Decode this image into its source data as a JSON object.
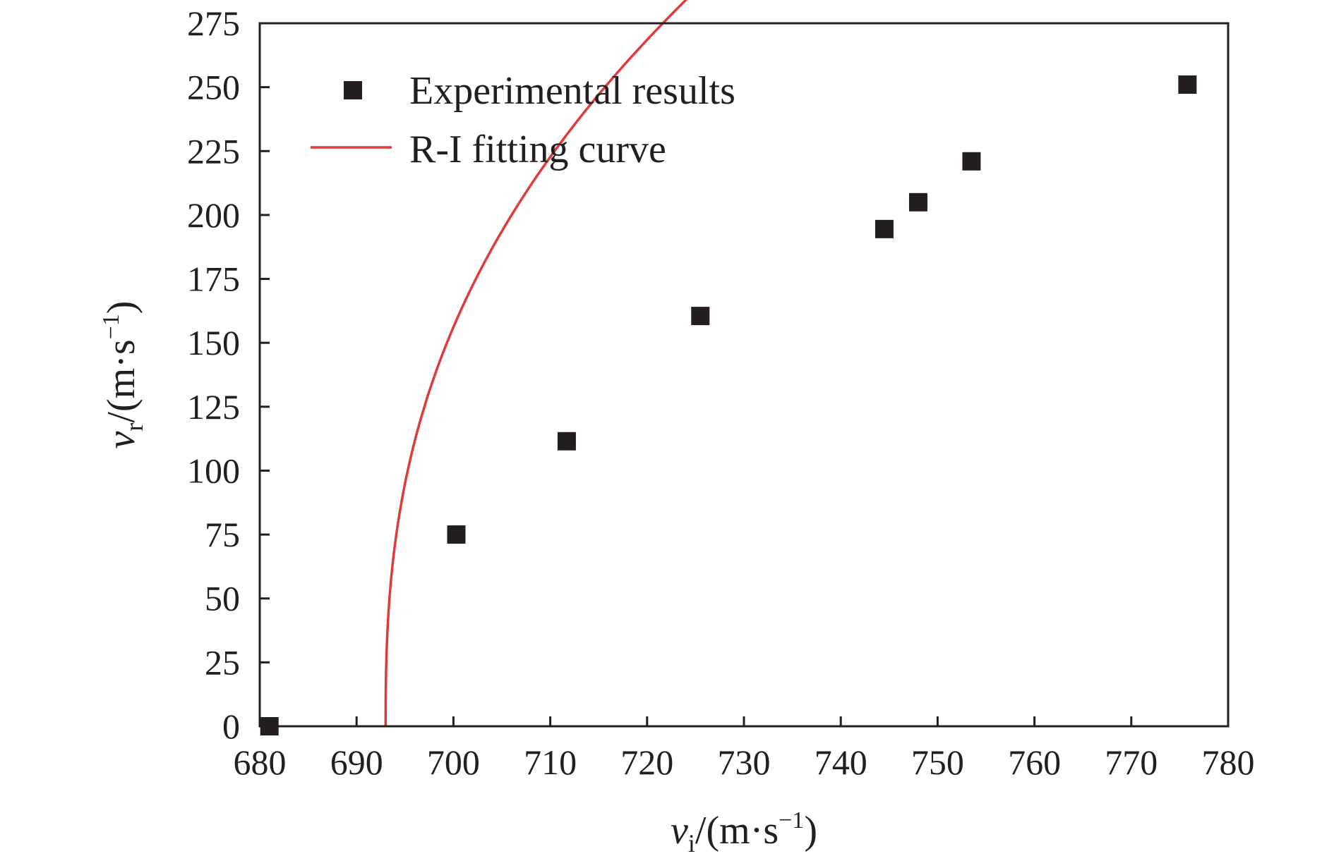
{
  "chart_data": {
    "type": "scatter",
    "x_axis": {
      "range": [
        680,
        780
      ],
      "ticks": [
        680,
        690,
        700,
        710,
        720,
        730,
        740,
        750,
        760,
        770,
        780
      ],
      "label": {
        "symbol": "v",
        "subscript": "i",
        "units_prefix": "/(m·s",
        "exponent": "−1",
        "units_suffix": ")"
      }
    },
    "y_axis": {
      "range": [
        0,
        275
      ],
      "ticks": [
        0,
        25,
        50,
        75,
        100,
        125,
        150,
        175,
        200,
        225,
        250,
        275
      ],
      "label": {
        "symbol": "v",
        "subscript": "r",
        "units_prefix": "/(m·s",
        "exponent": "−1",
        "units_suffix": ")"
      }
    },
    "legend_position": "top-left",
    "series": [
      {
        "name": "Experimental results",
        "kind": "scatter",
        "marker": "square",
        "color": "#231f20",
        "points": [
          [
            681,
            0
          ],
          [
            700.3,
            75
          ],
          [
            711.7,
            111.5
          ],
          [
            725.5,
            160.5
          ],
          [
            744.5,
            194.5
          ],
          [
            748,
            205
          ],
          [
            753.5,
            221
          ],
          [
            775.8,
            251
          ]
        ]
      },
      {
        "name": "R-I fitting curve",
        "kind": "line",
        "color": "#e03a3a",
        "model": {
          "ballistic_limit": 693,
          "a": 0.957,
          "p": 2.53
        }
      }
    ]
  }
}
